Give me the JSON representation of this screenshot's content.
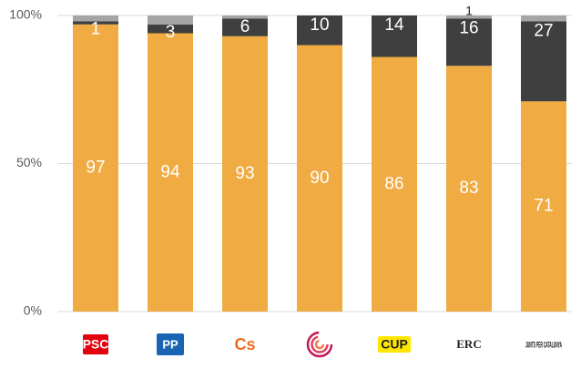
{
  "chart_data": {
    "type": "stacked_bar",
    "categories": [
      "PSC",
      "PP",
      "Cs",
      null,
      "CUP",
      "ERC",
      "JUNTS PER CATALUNYA"
    ],
    "series": [
      {
        "name": null,
        "color": "#f0ab43",
        "values": [
          97,
          94,
          93,
          90,
          86,
          83,
          71
        ]
      },
      {
        "name": null,
        "color": "#3f3f3f",
        "values": [
          1,
          3,
          6,
          10,
          14,
          16,
          27
        ]
      },
      {
        "name": null,
        "color": "#a5a5a5",
        "values": [
          2,
          3,
          1,
          0,
          0,
          1,
          2
        ],
        "value_labels": [
          null,
          null,
          null,
          null,
          null,
          "1",
          null
        ]
      }
    ],
    "ylim": [
      0,
      100
    ],
    "yticks": [
      {
        "value": 0,
        "label": "0%"
      },
      {
        "value": 50,
        "label": "50%"
      },
      {
        "value": 100,
        "label": "100%"
      }
    ],
    "grid": true
  }
}
